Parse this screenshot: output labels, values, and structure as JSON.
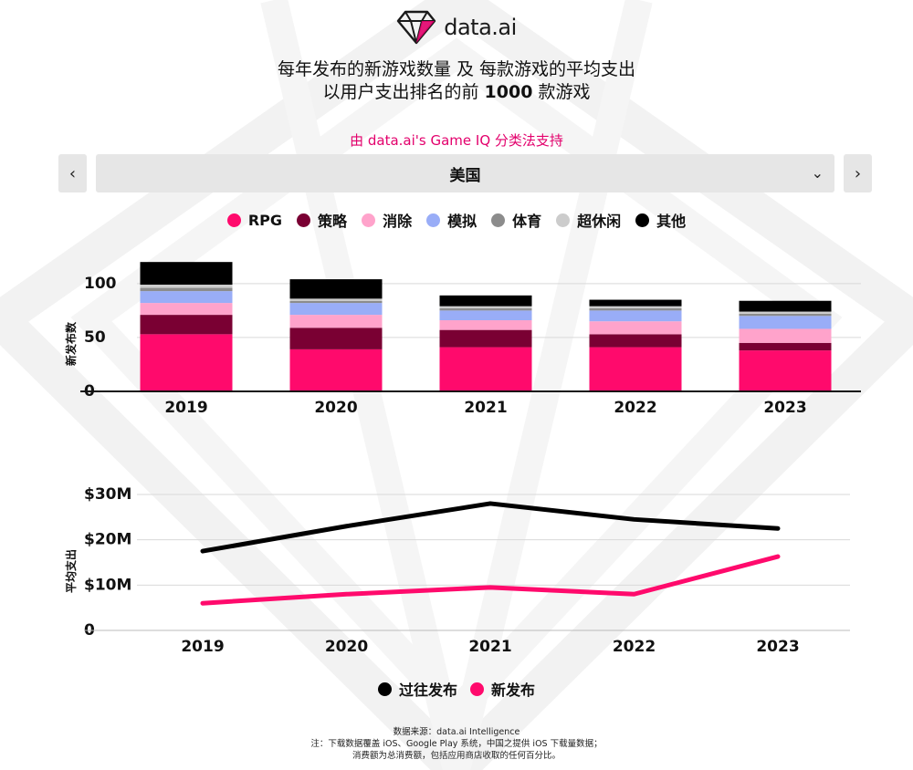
{
  "brand": {
    "logo_text": "data.ai"
  },
  "title": {
    "line1": "每年发布的新游戏数量 及 每款游戏的平均支出",
    "line2_prefix": "以用户支出排名的前 ",
    "line2_bold": "1000",
    "line2_suffix": " 款游戏"
  },
  "subtitle": "由 data.ai's Game IQ 分类法支持",
  "navigation": {
    "prev_symbol": "‹",
    "next_symbol": "›",
    "region": "美国",
    "chevron": "⌄"
  },
  "colors": {
    "rpg": "#ff0a6c",
    "strategy": "#7a0033",
    "match": "#ffa3cb",
    "simulation": "#99adf7",
    "sports": "#8c8c8c",
    "hypercasual": "#cccccc",
    "other": "#000000",
    "line_past": "#000000",
    "line_new": "#ff0a6c",
    "accent": "#e3006c"
  },
  "chart_data": [
    {
      "type": "bar",
      "stacked": true,
      "categories": [
        "2019",
        "2020",
        "2021",
        "2022",
        "2023"
      ],
      "series": [
        {
          "name": "RPG",
          "color": "#ff0a6c",
          "values": [
            53,
            39,
            41,
            41,
            38
          ]
        },
        {
          "name": "策略",
          "color": "#7a0033",
          "values": [
            18,
            20,
            16,
            12,
            7
          ]
        },
        {
          "name": "消除",
          "color": "#ffa3cb",
          "values": [
            11,
            12,
            9,
            12,
            13
          ]
        },
        {
          "name": "模拟",
          "color": "#99adf7",
          "values": [
            11,
            11,
            9,
            10,
            12
          ]
        },
        {
          "name": "体育",
          "color": "#8c8c8c",
          "values": [
            3,
            2,
            2,
            2,
            2
          ]
        },
        {
          "name": "超休闲",
          "color": "#cccccc",
          "values": [
            3,
            2,
            2,
            2,
            2
          ]
        },
        {
          "name": "其他",
          "color": "#000000",
          "values": [
            21,
            18,
            10,
            6,
            10
          ]
        }
      ],
      "ylabel": "新发布数",
      "yticks": [
        "0",
        "50",
        "100"
      ],
      "ylim": [
        0,
        110
      ],
      "grid": true,
      "legend": "top-center"
    },
    {
      "type": "line",
      "x": [
        "2019",
        "2020",
        "2021",
        "2022",
        "2023"
      ],
      "series": [
        {
          "name": "过往发布",
          "color": "#000000",
          "values": [
            17.5,
            23,
            28,
            24.5,
            22.5
          ]
        },
        {
          "name": "新发布",
          "color": "#ff0a6c",
          "values": [
            6,
            8,
            9.5,
            8,
            16.3
          ]
        }
      ],
      "ylabel": "平均支出",
      "yticks": [
        "0",
        "$10M",
        "$20M",
        "$30M"
      ],
      "ylim": [
        0,
        30
      ],
      "yunit": "millions USD",
      "grid": true,
      "legend": "bottom-center"
    }
  ],
  "footer": {
    "line1": "数据来源：data.ai Intelligence",
    "line2": "注：下载数据覆盖 iOS、Google Play 系统，中国之提供 iOS 下载量数据；",
    "line3": "消费额为总消费额，包括应用商店收取的任何百分比。"
  }
}
